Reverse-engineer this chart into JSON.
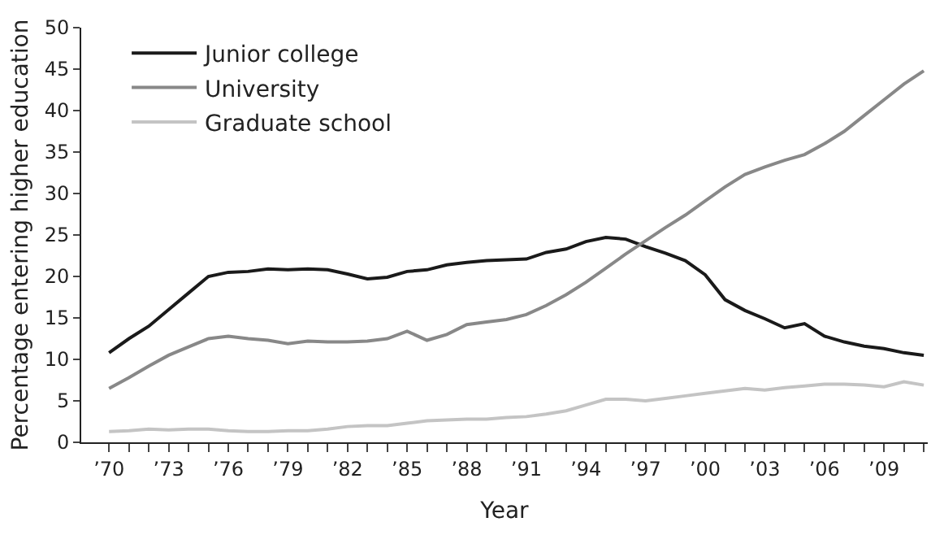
{
  "chart_data": {
    "type": "line",
    "xlabel": "Year",
    "ylabel": "Percentage entering higher education",
    "x": [
      1970,
      1971,
      1972,
      1973,
      1974,
      1975,
      1976,
      1977,
      1978,
      1979,
      1980,
      1981,
      1982,
      1983,
      1984,
      1985,
      1986,
      1987,
      1988,
      1989,
      1990,
      1991,
      1992,
      1993,
      1994,
      1995,
      1996,
      1997,
      1998,
      1999,
      2000,
      2001,
      2002,
      2003,
      2004,
      2005,
      2006,
      2007,
      2008,
      2009,
      2010,
      2011
    ],
    "series": [
      {
        "name": "Junior college",
        "color": "#1a1a1a",
        "values": [
          10.8,
          12.5,
          14.0,
          16.0,
          18.0,
          20.0,
          20.5,
          20.6,
          20.9,
          20.8,
          20.9,
          20.8,
          20.3,
          19.7,
          19.9,
          20.6,
          20.8,
          21.4,
          21.7,
          21.9,
          22.0,
          22.1,
          22.9,
          23.3,
          24.2,
          24.7,
          24.5,
          23.6,
          22.8,
          21.9,
          20.2,
          17.2,
          15.9,
          14.9,
          13.8,
          14.3,
          12.8,
          12.1,
          11.6,
          11.3,
          10.8,
          10.5
        ]
      },
      {
        "name": "University",
        "color": "#888888",
        "values": [
          6.5,
          7.8,
          9.2,
          10.5,
          11.5,
          12.5,
          12.8,
          12.5,
          12.3,
          11.9,
          12.2,
          12.1,
          12.1,
          12.2,
          12.5,
          13.4,
          12.3,
          13.0,
          14.2,
          14.5,
          14.8,
          15.4,
          16.5,
          17.8,
          19.3,
          21.0,
          22.7,
          24.3,
          25.9,
          27.4,
          29.1,
          30.8,
          32.3,
          33.2,
          34.0,
          34.7,
          36.0,
          37.5,
          39.4,
          41.3,
          43.2,
          44.8
        ]
      },
      {
        "name": "Graduate school",
        "color": "#c4c4c4",
        "values": [
          1.3,
          1.4,
          1.6,
          1.5,
          1.6,
          1.6,
          1.4,
          1.3,
          1.3,
          1.4,
          1.4,
          1.6,
          1.9,
          2.0,
          2.0,
          2.3,
          2.6,
          2.7,
          2.8,
          2.8,
          3.0,
          3.1,
          3.4,
          3.8,
          4.5,
          5.2,
          5.2,
          5.0,
          5.3,
          5.6,
          5.9,
          6.2,
          6.5,
          6.3,
          6.6,
          6.8,
          7.0,
          7.0,
          6.9,
          6.7,
          7.3,
          6.9
        ]
      }
    ],
    "xlim": [
      1968.6,
      2011.2
    ],
    "xticks": [
      {
        "value": 1970,
        "label": "’70"
      },
      {
        "value": 1971,
        "label": null
      },
      {
        "value": 1972,
        "label": null
      },
      {
        "value": 1973,
        "label": "’73"
      },
      {
        "value": 1974,
        "label": null
      },
      {
        "value": 1975,
        "label": null
      },
      {
        "value": 1976,
        "label": "’76"
      },
      {
        "value": 1977,
        "label": null
      },
      {
        "value": 1978,
        "label": null
      },
      {
        "value": 1979,
        "label": "’79"
      },
      {
        "value": 1980,
        "label": null
      },
      {
        "value": 1981,
        "label": null
      },
      {
        "value": 1982,
        "label": "’82"
      },
      {
        "value": 1983,
        "label": null
      },
      {
        "value": 1984,
        "label": null
      },
      {
        "value": 1985,
        "label": "’85"
      },
      {
        "value": 1986,
        "label": null
      },
      {
        "value": 1987,
        "label": null
      },
      {
        "value": 1988,
        "label": "’88"
      },
      {
        "value": 1989,
        "label": null
      },
      {
        "value": 1990,
        "label": null
      },
      {
        "value": 1991,
        "label": "’91"
      },
      {
        "value": 1992,
        "label": null
      },
      {
        "value": 1993,
        "label": null
      },
      {
        "value": 1994,
        "label": "’94"
      },
      {
        "value": 1995,
        "label": null
      },
      {
        "value": 1996,
        "label": null
      },
      {
        "value": 1997,
        "label": "’97"
      },
      {
        "value": 1998,
        "label": null
      },
      {
        "value": 1999,
        "label": null
      },
      {
        "value": 2000,
        "label": "’00"
      },
      {
        "value": 2001,
        "label": null
      },
      {
        "value": 2002,
        "label": null
      },
      {
        "value": 2003,
        "label": "’03"
      },
      {
        "value": 2004,
        "label": null
      },
      {
        "value": 2005,
        "label": null
      },
      {
        "value": 2006,
        "label": "’06"
      },
      {
        "value": 2007,
        "label": null
      },
      {
        "value": 2008,
        "label": null
      },
      {
        "value": 2009,
        "label": "’09"
      },
      {
        "value": 2010,
        "label": null
      },
      {
        "value": 2011,
        "label": null
      }
    ],
    "ylim": [
      0,
      50
    ],
    "yticks": [
      0,
      5,
      10,
      15,
      20,
      25,
      30,
      35,
      40,
      45,
      50
    ],
    "grid": false,
    "legend": "top left",
    "marker": "none",
    "line_style": "solid"
  }
}
